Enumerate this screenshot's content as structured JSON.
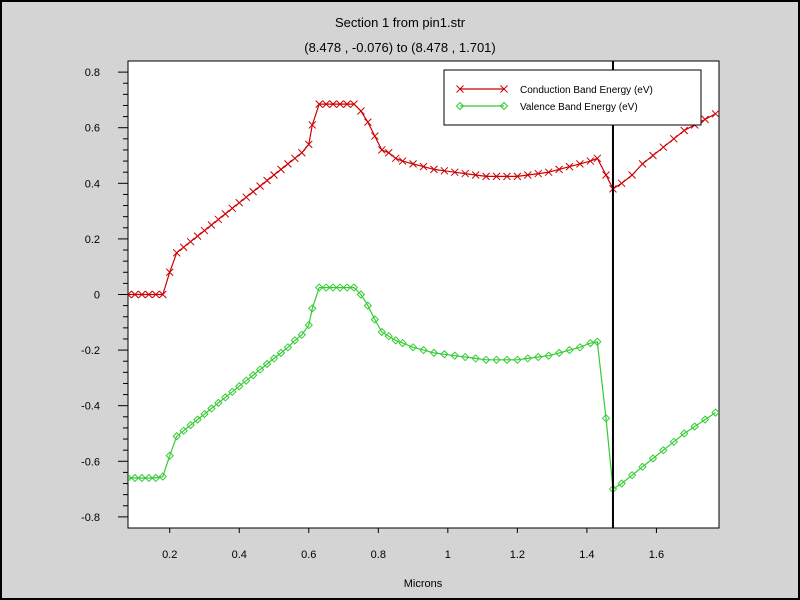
{
  "chart_data": {
    "type": "line",
    "title": "Section 1 from pin1.str",
    "subtitle": "(8.478 , -0.076) to (8.478 , 1.701)",
    "xlabel": "Microns",
    "ylabel": "",
    "xlim": [
      0.08,
      1.78
    ],
    "ylim": [
      -0.84,
      0.84
    ],
    "x_ticks": [
      {
        "value": 0.2,
        "label": "0.2"
      },
      {
        "value": 0.4,
        "label": "0.4"
      },
      {
        "value": 0.6,
        "label": "0.6"
      },
      {
        "value": 0.8,
        "label": "0.8"
      },
      {
        "value": 1.0,
        "label": "1"
      },
      {
        "value": 1.2,
        "label": "1.2"
      },
      {
        "value": 1.4,
        "label": "1.4"
      },
      {
        "value": 1.6,
        "label": "1.6"
      }
    ],
    "y_ticks": [
      {
        "value": 0.8,
        "label": "0.8"
      },
      {
        "value": 0.6,
        "label": "0.6"
      },
      {
        "value": 0.4,
        "label": "0.4"
      },
      {
        "value": 0.2,
        "label": "0.2"
      },
      {
        "value": 0,
        "label": "0"
      },
      {
        "value": -0.2,
        "label": "-0.2"
      },
      {
        "value": -0.4,
        "label": "-0.4"
      },
      {
        "value": -0.6,
        "label": "-0.6"
      },
      {
        "value": -0.8,
        "label": "-0.8"
      }
    ],
    "grid": false,
    "legend_position": "top-right",
    "vertical_line_x": 1.475,
    "series": [
      {
        "name": "Conduction Band Energy (eV)",
        "color": "#cc0000",
        "marker": "x",
        "points": [
          [
            0.08,
            0.0
          ],
          [
            0.1,
            0.0
          ],
          [
            0.12,
            0.0
          ],
          [
            0.14,
            0.0
          ],
          [
            0.16,
            0.0
          ],
          [
            0.18,
            0.0
          ],
          [
            0.2,
            0.08
          ],
          [
            0.22,
            0.15
          ],
          [
            0.24,
            0.17
          ],
          [
            0.26,
            0.19
          ],
          [
            0.28,
            0.21
          ],
          [
            0.3,
            0.23
          ],
          [
            0.32,
            0.25
          ],
          [
            0.34,
            0.27
          ],
          [
            0.36,
            0.29
          ],
          [
            0.38,
            0.31
          ],
          [
            0.4,
            0.33
          ],
          [
            0.42,
            0.35
          ],
          [
            0.44,
            0.37
          ],
          [
            0.46,
            0.39
          ],
          [
            0.48,
            0.41
          ],
          [
            0.5,
            0.43
          ],
          [
            0.52,
            0.45
          ],
          [
            0.54,
            0.47
          ],
          [
            0.56,
            0.49
          ],
          [
            0.58,
            0.51
          ],
          [
            0.6,
            0.54
          ],
          [
            0.61,
            0.61
          ],
          [
            0.63,
            0.685
          ],
          [
            0.65,
            0.685
          ],
          [
            0.67,
            0.685
          ],
          [
            0.69,
            0.685
          ],
          [
            0.71,
            0.685
          ],
          [
            0.73,
            0.685
          ],
          [
            0.75,
            0.66
          ],
          [
            0.77,
            0.62
          ],
          [
            0.79,
            0.57
          ],
          [
            0.81,
            0.52
          ],
          [
            0.83,
            0.51
          ],
          [
            0.85,
            0.49
          ],
          [
            0.87,
            0.48
          ],
          [
            0.9,
            0.47
          ],
          [
            0.93,
            0.46
          ],
          [
            0.96,
            0.45
          ],
          [
            0.99,
            0.445
          ],
          [
            1.02,
            0.44
          ],
          [
            1.05,
            0.435
          ],
          [
            1.08,
            0.43
          ],
          [
            1.11,
            0.425
          ],
          [
            1.14,
            0.425
          ],
          [
            1.17,
            0.425
          ],
          [
            1.2,
            0.425
          ],
          [
            1.23,
            0.43
          ],
          [
            1.26,
            0.435
          ],
          [
            1.29,
            0.44
          ],
          [
            1.32,
            0.45
          ],
          [
            1.35,
            0.46
          ],
          [
            1.38,
            0.47
          ],
          [
            1.41,
            0.48
          ],
          [
            1.43,
            0.49
          ],
          [
            1.455,
            0.43
          ],
          [
            1.475,
            0.38
          ],
          [
            1.5,
            0.4
          ],
          [
            1.53,
            0.43
          ],
          [
            1.56,
            0.47
          ],
          [
            1.59,
            0.5
          ],
          [
            1.62,
            0.53
          ],
          [
            1.65,
            0.56
          ],
          [
            1.68,
            0.59
          ],
          [
            1.71,
            0.61
          ],
          [
            1.74,
            0.63
          ],
          [
            1.77,
            0.65
          ]
        ]
      },
      {
        "name": "Valence Band Energy (eV)",
        "color": "#33cc33",
        "marker": "diamond",
        "points": [
          [
            0.08,
            -0.66
          ],
          [
            0.1,
            -0.66
          ],
          [
            0.12,
            -0.66
          ],
          [
            0.14,
            -0.66
          ],
          [
            0.16,
            -0.66
          ],
          [
            0.18,
            -0.655
          ],
          [
            0.2,
            -0.58
          ],
          [
            0.22,
            -0.51
          ],
          [
            0.24,
            -0.49
          ],
          [
            0.26,
            -0.47
          ],
          [
            0.28,
            -0.45
          ],
          [
            0.3,
            -0.43
          ],
          [
            0.32,
            -0.41
          ],
          [
            0.34,
            -0.39
          ],
          [
            0.36,
            -0.37
          ],
          [
            0.38,
            -0.35
          ],
          [
            0.4,
            -0.33
          ],
          [
            0.42,
            -0.31
          ],
          [
            0.44,
            -0.29
          ],
          [
            0.46,
            -0.27
          ],
          [
            0.48,
            -0.25
          ],
          [
            0.5,
            -0.23
          ],
          [
            0.52,
            -0.21
          ],
          [
            0.54,
            -0.19
          ],
          [
            0.56,
            -0.165
          ],
          [
            0.58,
            -0.145
          ],
          [
            0.6,
            -0.11
          ],
          [
            0.61,
            -0.05
          ],
          [
            0.63,
            0.025
          ],
          [
            0.65,
            0.025
          ],
          [
            0.67,
            0.025
          ],
          [
            0.69,
            0.025
          ],
          [
            0.71,
            0.025
          ],
          [
            0.73,
            0.025
          ],
          [
            0.75,
            -0.0
          ],
          [
            0.77,
            -0.04
          ],
          [
            0.79,
            -0.09
          ],
          [
            0.81,
            -0.135
          ],
          [
            0.83,
            -0.15
          ],
          [
            0.85,
            -0.165
          ],
          [
            0.87,
            -0.175
          ],
          [
            0.9,
            -0.19
          ],
          [
            0.93,
            -0.2
          ],
          [
            0.96,
            -0.21
          ],
          [
            0.99,
            -0.215
          ],
          [
            1.02,
            -0.22
          ],
          [
            1.05,
            -0.225
          ],
          [
            1.08,
            -0.23
          ],
          [
            1.11,
            -0.235
          ],
          [
            1.14,
            -0.235
          ],
          [
            1.17,
            -0.235
          ],
          [
            1.2,
            -0.235
          ],
          [
            1.23,
            -0.23
          ],
          [
            1.26,
            -0.225
          ],
          [
            1.29,
            -0.22
          ],
          [
            1.32,
            -0.21
          ],
          [
            1.35,
            -0.2
          ],
          [
            1.38,
            -0.19
          ],
          [
            1.41,
            -0.175
          ],
          [
            1.43,
            -0.17
          ],
          [
            1.455,
            -0.445
          ],
          [
            1.475,
            -0.7
          ],
          [
            1.5,
            -0.68
          ],
          [
            1.53,
            -0.65
          ],
          [
            1.56,
            -0.62
          ],
          [
            1.59,
            -0.59
          ],
          [
            1.62,
            -0.56
          ],
          [
            1.65,
            -0.53
          ],
          [
            1.68,
            -0.5
          ],
          [
            1.71,
            -0.475
          ],
          [
            1.74,
            -0.45
          ],
          [
            1.77,
            -0.425
          ]
        ]
      }
    ]
  }
}
